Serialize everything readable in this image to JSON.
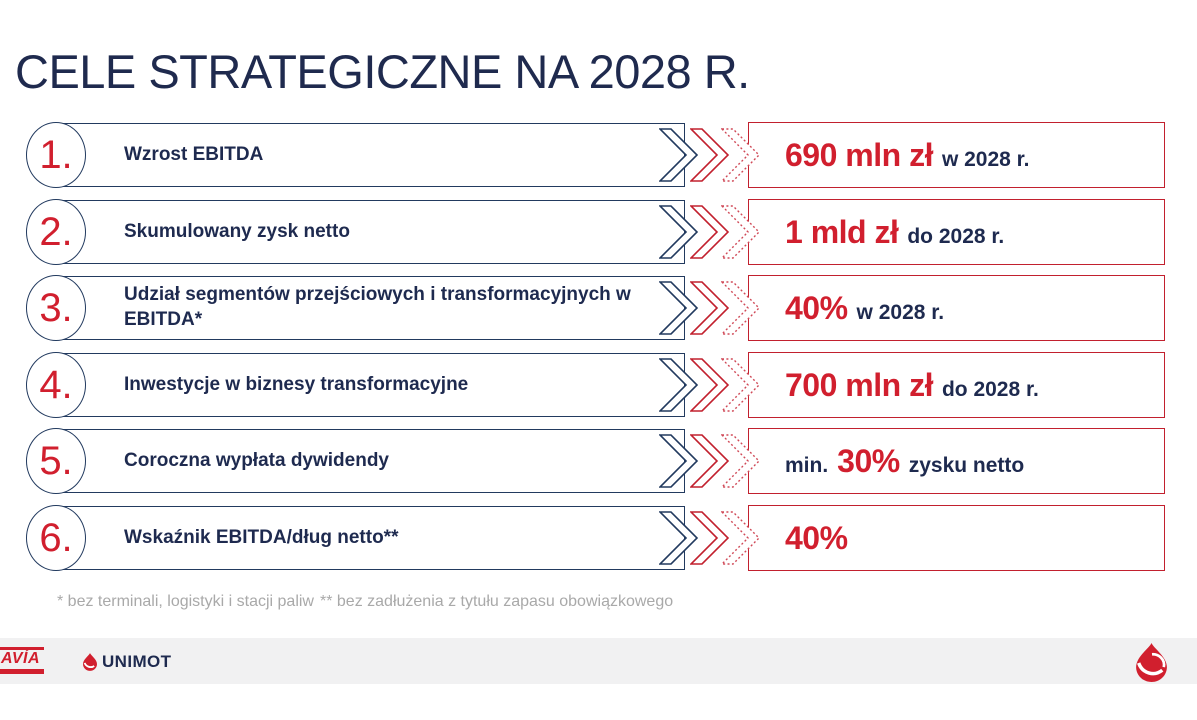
{
  "title": "CELE STRATEGICZNE NA 2028 R.",
  "goals": [
    {
      "number": "1.",
      "label": "Wzrost EBITDA",
      "prefix": "",
      "value": "690 mln zł",
      "suffix": "w 2028 r."
    },
    {
      "number": "2.",
      "label": "Skumulowany zysk netto",
      "prefix": "",
      "value": "1 mld zł",
      "suffix": "do 2028 r."
    },
    {
      "number": "3.",
      "label": "Udział segmentów przejściowych i transformacyjnych w EBITDA*",
      "prefix": "",
      "value": "40%",
      "suffix": "w 2028 r."
    },
    {
      "number": "4.",
      "label": "Inwestycje w biznesy transformacyjne",
      "prefix": "",
      "value": "700 mln zł",
      "suffix": "do 2028 r."
    },
    {
      "number": "5.",
      "label": "Coroczna wypłata dywidendy",
      "prefix": "min.",
      "value": "30%",
      "suffix": "zysku netto"
    },
    {
      "number": "6.",
      "label": "Wskaźnik EBITDA/dług netto**",
      "prefix": "",
      "value": "40%",
      "suffix": ""
    }
  ],
  "footnotes": [
    "* bez terminali, logistyki i stacji paliw",
    "** bez zadłużenia z tytułu zapasu obowiązkowego"
  ],
  "footer": {
    "avia_label": "AVÍA",
    "unimot_label": "UNIMOT"
  },
  "colors": {
    "navy_text": "#1e2a4f",
    "navy_border": "#223a5f",
    "red": "#d11f2e",
    "red_border": "#c2202e",
    "footnote_gray": "#a9a9a9",
    "footer_bg": "#f1f1f2"
  },
  "layout_hints": {
    "row_top_start": 123,
    "row_spacing": 76.6
  }
}
